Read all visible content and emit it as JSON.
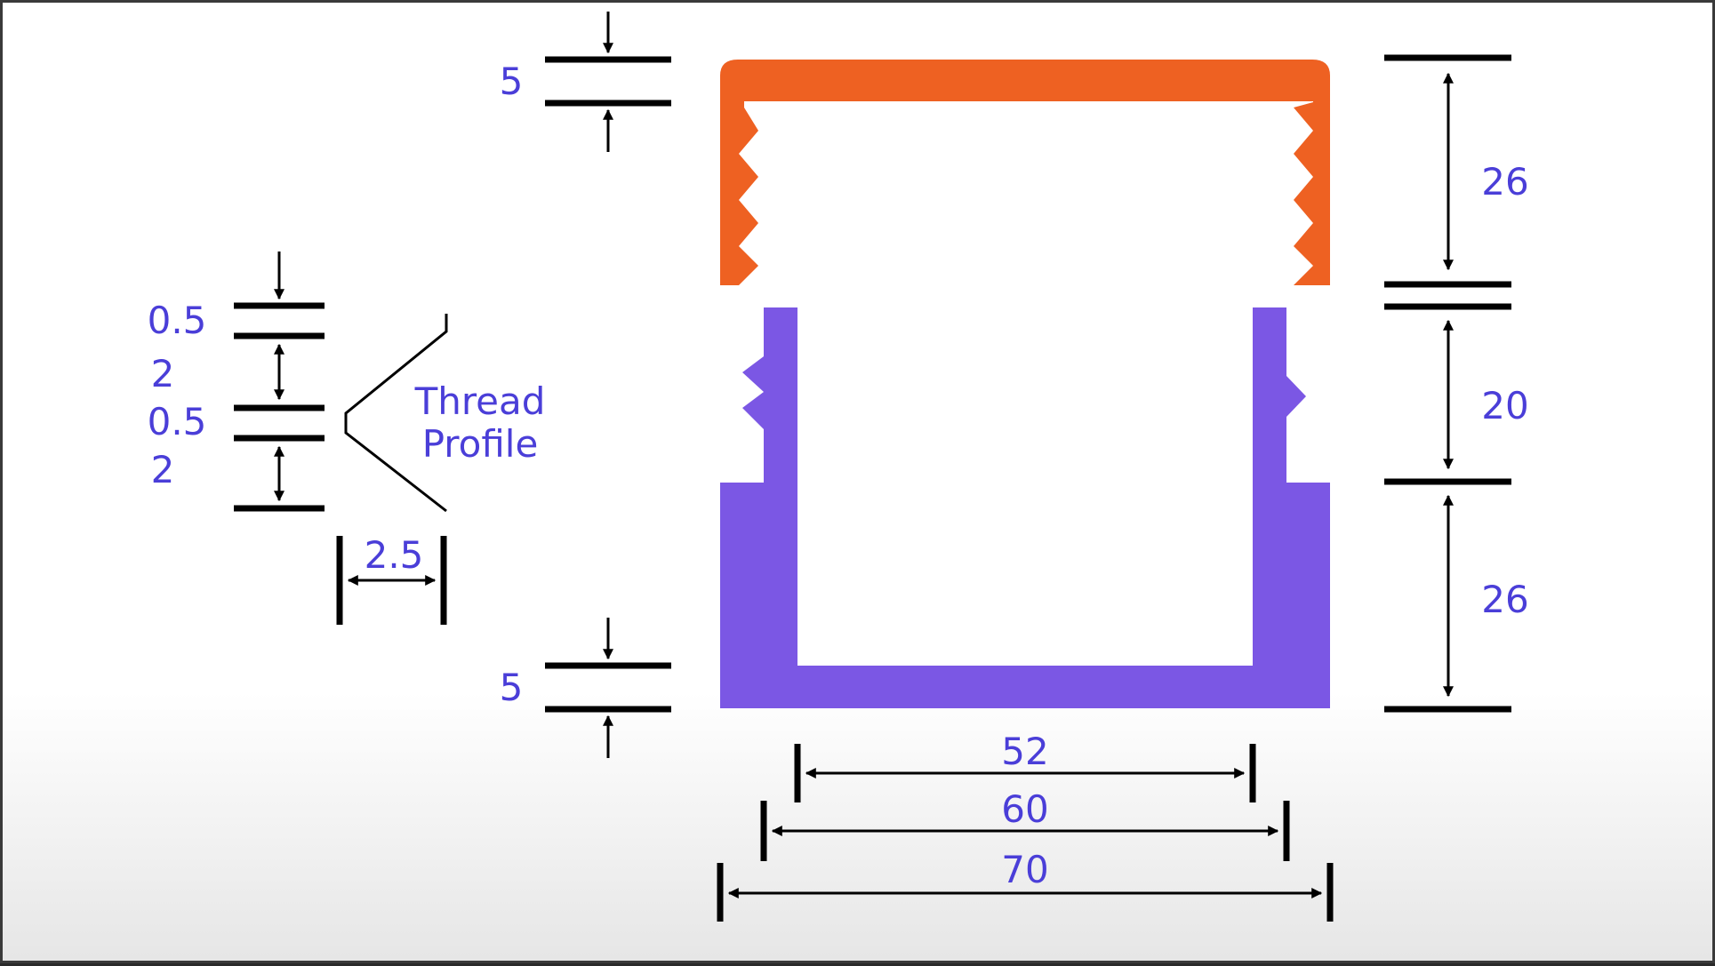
{
  "colors": {
    "cap": "#ee6122",
    "base": "#7b57e4",
    "dimension_text": "#4a3ed8",
    "lines": "#000000"
  },
  "labels": {
    "cap_wall": "5",
    "cap_height": "26",
    "thread_height": "20",
    "base_height": "26",
    "base_wall": "5",
    "inner_width": "52",
    "thread_width": "60",
    "outer_width": "70",
    "thread_crest": "0.5",
    "thread_flank_a": "2",
    "thread_root": "0.5",
    "thread_flank_b": "2",
    "thread_depth": "2.5",
    "thread_profile_line1": "Thread",
    "thread_profile_line2": "Profile"
  }
}
